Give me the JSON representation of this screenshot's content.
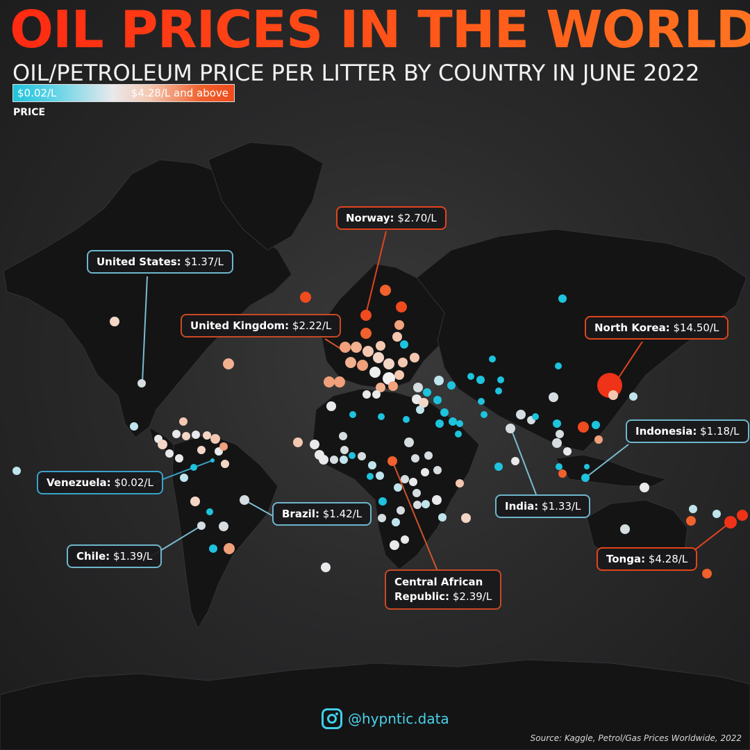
{
  "header": {
    "title": "OIL PRICES IN THE WORLD",
    "subtitle": "OIL/PETROLEUM PRICE PER LITTER BY COUNTRY IN JUNE 2022"
  },
  "legend": {
    "min_label": "$0.02/L",
    "max_label": "$4.28/L and above",
    "title": "PRICE",
    "low_color": "#1ec3dd",
    "mid_color": "#e9e9ec",
    "high_color": "#ef4b1e"
  },
  "callouts": [
    {
      "country": "Norway:",
      "price": "$2.70/L",
      "level": "hot"
    },
    {
      "country": "United States:",
      "price": "$1.37/L",
      "level": "cool"
    },
    {
      "country": "United Kingdom:",
      "price": "$2.22/L",
      "level": "warm"
    },
    {
      "country": "North Korea:",
      "price": "$14.50/L",
      "level": "hot"
    },
    {
      "country": "Indonesia:",
      "price": "$1.18/L",
      "level": "cool"
    },
    {
      "country": "Venezuela:",
      "price": "$0.02/L",
      "level": "cool"
    },
    {
      "country": "Brazil:",
      "price": "$1.42/L",
      "level": "cool"
    },
    {
      "country": "India:",
      "price": "$1.33/L",
      "level": "cool"
    },
    {
      "country": "Chile:",
      "price": "$1.39/L",
      "level": "cool"
    },
    {
      "country": "Central African Republic:",
      "country_line1": "Central African",
      "country_line2": "Republic:",
      "price": "$2.39/L",
      "level": "warm"
    },
    {
      "country": "Tonga:",
      "price": "$4.28/L",
      "level": "hot"
    }
  ],
  "footer": {
    "handle": "@hypntic.data",
    "icon": "instagram-icon",
    "source": "Source: Kaggle, Petrol/Gas Prices Worldwide, 2022"
  }
}
